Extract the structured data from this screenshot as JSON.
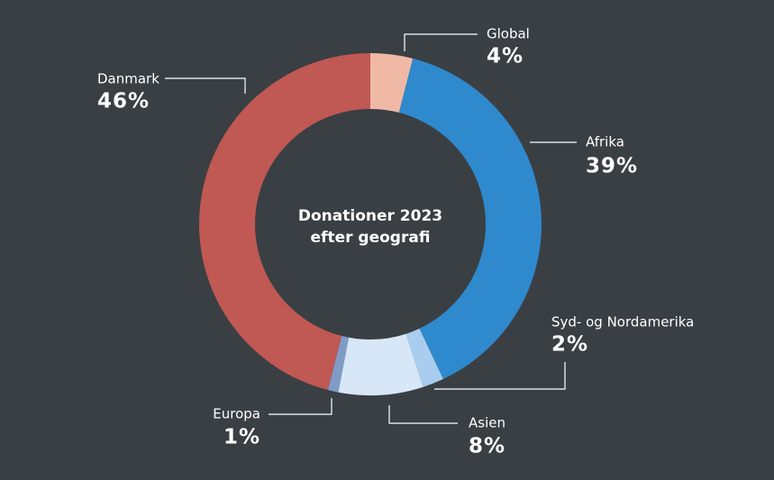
{
  "chart_data": {
    "type": "pie",
    "title": [
      "Donationer 2023",
      "efter geografi"
    ],
    "categories": [
      "Global",
      "Afrika",
      "Syd- og Nordamerika",
      "Asien",
      "Europa",
      "Danmark"
    ],
    "values": [
      4,
      39,
      2,
      8,
      1,
      46
    ],
    "value_labels": [
      "4%",
      "39%",
      "2%",
      "8%",
      "1%",
      "46%"
    ],
    "colors": [
      "#f0b9a5",
      "#2f89cd",
      "#a9cdef",
      "#d7e7f8",
      "#7f9bc6",
      "#c05853"
    ]
  }
}
